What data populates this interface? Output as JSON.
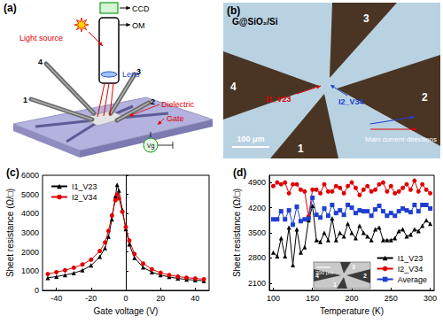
{
  "panel_a": {
    "label": "(a)",
    "texts": {
      "light_source": "Light source",
      "ccd": "CCD",
      "om": "OM",
      "lens": "Lens",
      "dielectric": "Dielectric",
      "gate": "Gate",
      "gate_voltage": "Vg"
    },
    "probes": [
      "1",
      "2",
      "3",
      "4"
    ]
  },
  "panel_b": {
    "label": "(b)",
    "sample": "G@SiO₂/Si",
    "contacts": [
      "1",
      "2",
      "3",
      "4"
    ],
    "currents": [
      "I1_V23",
      "I2_V34"
    ],
    "arrow_note": "Main current directions",
    "scale_bar": "100 μm"
  },
  "chart_data": [
    {
      "type": "line",
      "title": "(c)",
      "x_label": "Gate voltage (V)",
      "y_label": "Sheet resistance (Ω/□)",
      "x": [
        -45,
        -40,
        -35,
        -30,
        -25,
        -20,
        -15,
        -12,
        -10,
        -8,
        -6,
        -5,
        -4,
        -2,
        0,
        2,
        5,
        10,
        15,
        20,
        25,
        30,
        35,
        40,
        45
      ],
      "series": [
        {
          "name": "I1_V23",
          "color": "#000000",
          "marker": "triangle",
          "values": [
            650,
            720,
            800,
            900,
            1050,
            1300,
            1750,
            2200,
            2800,
            3700,
            4900,
            5500,
            5200,
            4200,
            3200,
            2400,
            1700,
            1200,
            950,
            800,
            700,
            620,
            570,
            530,
            500
          ]
        },
        {
          "name": "I2_V34",
          "color": "#e00000",
          "marker": "circle",
          "values": [
            850,
            950,
            1050,
            1180,
            1350,
            1600,
            2050,
            2500,
            3100,
            3900,
            4700,
            5000,
            4800,
            4100,
            3300,
            2600,
            1900,
            1400,
            1100,
            920,
            800,
            720,
            660,
            620,
            580
          ]
        }
      ],
      "xlim": [
        -48,
        48
      ],
      "xticks": [
        -40,
        -20,
        0,
        20,
        40
      ],
      "ylim": [
        0,
        6000
      ],
      "yticks": [
        0,
        1000,
        2000,
        3000,
        4000,
        5000,
        6000
      ],
      "legend": "upper left",
      "grid": false
    },
    {
      "type": "line",
      "title": "(d)",
      "x_label": "Temperature (K)",
      "y_label": "Sheet resistance (Ω/□)",
      "x": [
        100,
        105,
        110,
        115,
        120,
        125,
        130,
        135,
        140,
        145,
        150,
        155,
        160,
        165,
        170,
        175,
        180,
        185,
        190,
        195,
        200,
        205,
        210,
        215,
        220,
        225,
        230,
        235,
        240,
        245,
        250,
        255,
        260,
        265,
        270,
        275,
        280,
        285,
        290,
        295,
        300
      ],
      "series": [
        {
          "name": "I1_V23",
          "color": "#000000",
          "marker": "triangle",
          "values": [
            2950,
            2850,
            3350,
            2850,
            3650,
            2600,
            3600,
            2950,
            3100,
            3850,
            4250,
            3300,
            3250,
            3500,
            3300,
            3900,
            3300,
            3500,
            3400,
            3750,
            3500,
            3350,
            3700,
            3500,
            3400,
            3300,
            3600,
            3650,
            3300,
            3300,
            3300,
            3350,
            3550,
            3600,
            3400,
            3450,
            3600,
            3550,
            3700,
            3850,
            3750
          ]
        },
        {
          "name": "I2_V34",
          "color": "#e00000",
          "marker": "circle",
          "values": [
            4800,
            4900,
            4850,
            4900,
            4600,
            4850,
            4850,
            4700,
            4650,
            3950,
            4700,
            4700,
            4600,
            4850,
            4650,
            4650,
            4800,
            4750,
            4600,
            4800,
            4900,
            4750,
            4550,
            4700,
            4800,
            4650,
            4700,
            4850,
            4900,
            4650,
            4800,
            4600,
            4650,
            4750,
            4850,
            4700,
            4950,
            4650,
            4850,
            4700,
            4600
          ]
        },
        {
          "name": "Average",
          "color": "#1f3fd0",
          "marker": "square",
          "values": [
            3875,
            3875,
            4100,
            3875,
            4125,
            3725,
            4225,
            3825,
            3875,
            3900,
            4475,
            4000,
            3925,
            4175,
            3975,
            4275,
            4050,
            4125,
            4000,
            4275,
            4200,
            4050,
            4125,
            4100,
            4100,
            3975,
            4150,
            4250,
            4100,
            3975,
            4050,
            3975,
            4100,
            4175,
            4125,
            4075,
            4275,
            4100,
            4275,
            4275,
            4175
          ]
        }
      ],
      "xlim": [
        95,
        305
      ],
      "xticks": [
        100,
        150,
        200,
        250,
        300
      ],
      "ylim": [
        1900,
        5100
      ],
      "yticks": [
        2100,
        2800,
        3500,
        4200,
        4900
      ],
      "legend": "lower right",
      "grid": false,
      "inset": {
        "scale_bar": "200 μm",
        "contacts": [
          "1",
          "2",
          "3",
          "4"
        ]
      }
    }
  ]
}
